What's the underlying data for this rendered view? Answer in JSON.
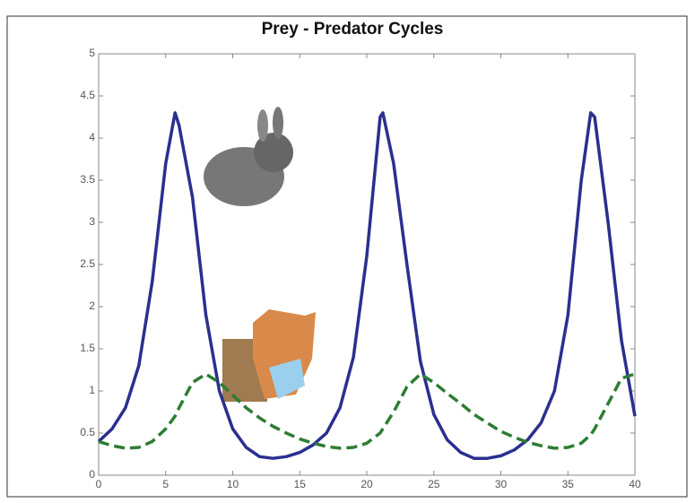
{
  "chart_data": {
    "type": "line",
    "title": "Prey - Predator Cycles",
    "x": [
      0,
      1,
      2,
      3,
      4,
      5,
      5.7,
      6,
      7,
      8,
      9,
      10,
      11,
      12,
      13,
      14,
      15,
      16,
      17,
      18,
      19,
      20,
      21,
      21.2,
      22,
      23,
      24,
      25,
      26,
      27,
      28,
      29,
      30,
      31,
      32,
      33,
      34,
      35,
      36,
      36.7,
      37,
      38,
      39,
      40
    ],
    "series": [
      {
        "color": "#2b2f8f",
        "dash": false,
        "values": [
          0.4,
          0.55,
          0.8,
          1.3,
          2.3,
          3.7,
          4.3,
          4.15,
          3.3,
          1.9,
          1.0,
          0.55,
          0.33,
          0.22,
          0.2,
          0.22,
          0.27,
          0.36,
          0.5,
          0.8,
          1.4,
          2.6,
          4.25,
          4.3,
          3.7,
          2.5,
          1.35,
          0.72,
          0.42,
          0.27,
          0.2,
          0.2,
          0.23,
          0.3,
          0.42,
          0.62,
          1.0,
          1.9,
          3.5,
          4.3,
          4.25,
          3.0,
          1.6,
          0.7
        ]
      },
      {
        "color": "#2e7d32",
        "dash": true,
        "values": [
          0.4,
          0.35,
          0.32,
          0.33,
          0.4,
          0.55,
          0.7,
          0.8,
          1.1,
          1.2,
          1.1,
          0.95,
          0.8,
          0.68,
          0.58,
          0.5,
          0.43,
          0.38,
          0.34,
          0.32,
          0.33,
          0.38,
          0.5,
          0.55,
          0.75,
          1.05,
          1.2,
          1.1,
          0.97,
          0.85,
          0.72,
          0.62,
          0.52,
          0.45,
          0.39,
          0.35,
          0.32,
          0.33,
          0.38,
          0.48,
          0.55,
          0.85,
          1.15,
          1.2
        ]
      }
    ],
    "xlim": [
      0,
      40
    ],
    "xticks": [
      0,
      5,
      10,
      15,
      20,
      25,
      30,
      35,
      40
    ],
    "ylim": [
      0,
      5
    ],
    "yticks": [
      0,
      0.5,
      1,
      1.5,
      2,
      2.5,
      3,
      3.5,
      4,
      4.5,
      5
    ]
  }
}
